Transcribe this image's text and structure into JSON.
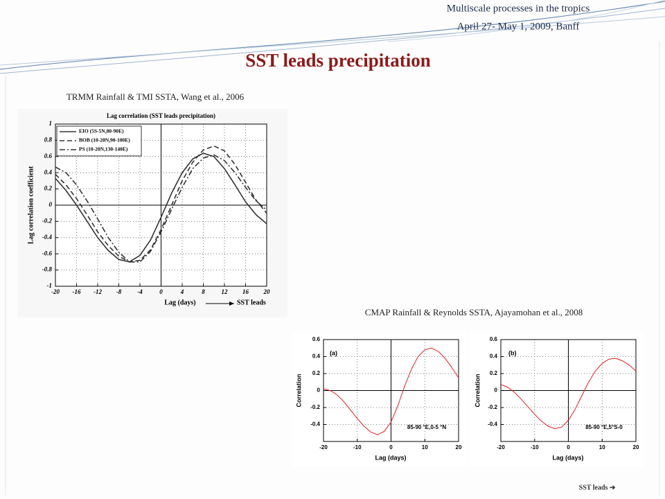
{
  "header": {
    "line1": "Multiscale processes in the tropics",
    "line2": "April 27- May 1, 2009, Banff"
  },
  "title": "SST leads precipitation",
  "caption1": "TRMM Rainfall & TMI SSTA, Wang et al., 2006",
  "caption2": "CMAP Rainfall & Reynolds SSTA, Ajayamohan et al., 2008",
  "footnote": "SST leads ➔",
  "chart_data": [
    {
      "type": "line",
      "title": "Lag correlation (SST leads precipitation)",
      "x_label": "Lag (days)",
      "y_label": "Lag correlation coefficient",
      "annotation": "SST leads",
      "x": [
        -20,
        -18,
        -16,
        -14,
        -12,
        -10,
        -8,
        -6,
        -4,
        -2,
        0,
        2,
        4,
        6,
        8,
        10,
        12,
        14,
        16,
        18,
        20
      ],
      "xlim": [
        -20,
        20
      ],
      "xticks": [
        -20,
        -16,
        -12,
        -8,
        -4,
        0,
        4,
        8,
        12,
        16,
        20
      ],
      "ylim": [
        -1,
        1
      ],
      "yticks": [
        -1,
        -0.8,
        -0.6,
        -0.4,
        -0.2,
        0,
        0.2,
        0.4,
        0.6,
        0.8,
        1
      ],
      "grid": true,
      "legend": "upper left",
      "series": [
        {
          "name": "EIO (5S-5N,80-90E)",
          "color": "#333333",
          "line_style": "solid",
          "values": [
            0.33,
            0.18,
            0.0,
            -0.2,
            -0.4,
            -0.56,
            -0.67,
            -0.7,
            -0.62,
            -0.43,
            -0.15,
            0.15,
            0.4,
            0.57,
            0.64,
            0.6,
            0.45,
            0.25,
            0.04,
            -0.12,
            -0.23
          ]
        },
        {
          "name": "BOB (10-20N,90-100E)",
          "color": "#333333",
          "line_style": "dashed",
          "values": [
            0.38,
            0.25,
            0.08,
            -0.12,
            -0.33,
            -0.5,
            -0.63,
            -0.7,
            -0.68,
            -0.55,
            -0.3,
            0.0,
            0.3,
            0.53,
            0.68,
            0.73,
            0.67,
            0.5,
            0.28,
            0.06,
            -0.1
          ]
        },
        {
          "name": "PS (10-20N,130-140E)",
          "color": "#333333",
          "line_style": "dashdot",
          "values": [
            0.47,
            0.4,
            0.25,
            0.05,
            -0.17,
            -0.4,
            -0.58,
            -0.7,
            -0.7,
            -0.57,
            -0.33,
            -0.05,
            0.22,
            0.45,
            0.58,
            0.62,
            0.55,
            0.4,
            0.22,
            0.05,
            -0.06
          ]
        }
      ]
    },
    {
      "type": "line",
      "panel_label": "(a)",
      "x_label": "Lag (days)",
      "y_label": "Correlation",
      "annotation": "85-90 °E,0-5 °N",
      "x": [
        -20,
        -18,
        -16,
        -14,
        -12,
        -10,
        -8,
        -6,
        -4,
        -2,
        0,
        2,
        4,
        6,
        8,
        10,
        12,
        14,
        16,
        18,
        20
      ],
      "xlim": [
        -20,
        20
      ],
      "xticks": [
        -20,
        -10,
        0,
        10,
        20
      ],
      "ylim": [
        -0.6,
        0.6
      ],
      "yticks": [
        -0.4,
        -0.2,
        0,
        0.2,
        0.4,
        0.6
      ],
      "grid": true,
      "series": [
        {
          "color": "#e02020",
          "line_style": "solid",
          "values": [
            0.02,
            0.0,
            -0.05,
            -0.13,
            -0.23,
            -0.33,
            -0.42,
            -0.49,
            -0.52,
            -0.48,
            -0.37,
            -0.18,
            0.05,
            0.25,
            0.4,
            0.48,
            0.5,
            0.46,
            0.38,
            0.27,
            0.15
          ]
        }
      ]
    },
    {
      "type": "line",
      "panel_label": "(b)",
      "x_label": "Lag (days)",
      "y_label": "Correlation",
      "annotation": "85-90 °E,5°S-0",
      "x": [
        -20,
        -18,
        -16,
        -14,
        -12,
        -10,
        -8,
        -6,
        -4,
        -2,
        0,
        2,
        4,
        6,
        8,
        10,
        12,
        14,
        16,
        18,
        20
      ],
      "xlim": [
        -20,
        20
      ],
      "xticks": [
        -20,
        -10,
        0,
        10,
        20
      ],
      "ylim": [
        -0.6,
        0.6
      ],
      "yticks": [
        -0.4,
        -0.2,
        0,
        0.2,
        0.4,
        0.6
      ],
      "grid": true,
      "series": [
        {
          "color": "#e02020",
          "line_style": "solid",
          "values": [
            0.07,
            0.04,
            -0.02,
            -0.1,
            -0.19,
            -0.28,
            -0.36,
            -0.42,
            -0.45,
            -0.43,
            -0.35,
            -0.22,
            -0.06,
            0.1,
            0.23,
            0.32,
            0.37,
            0.38,
            0.35,
            0.3,
            0.23
          ]
        }
      ]
    }
  ]
}
